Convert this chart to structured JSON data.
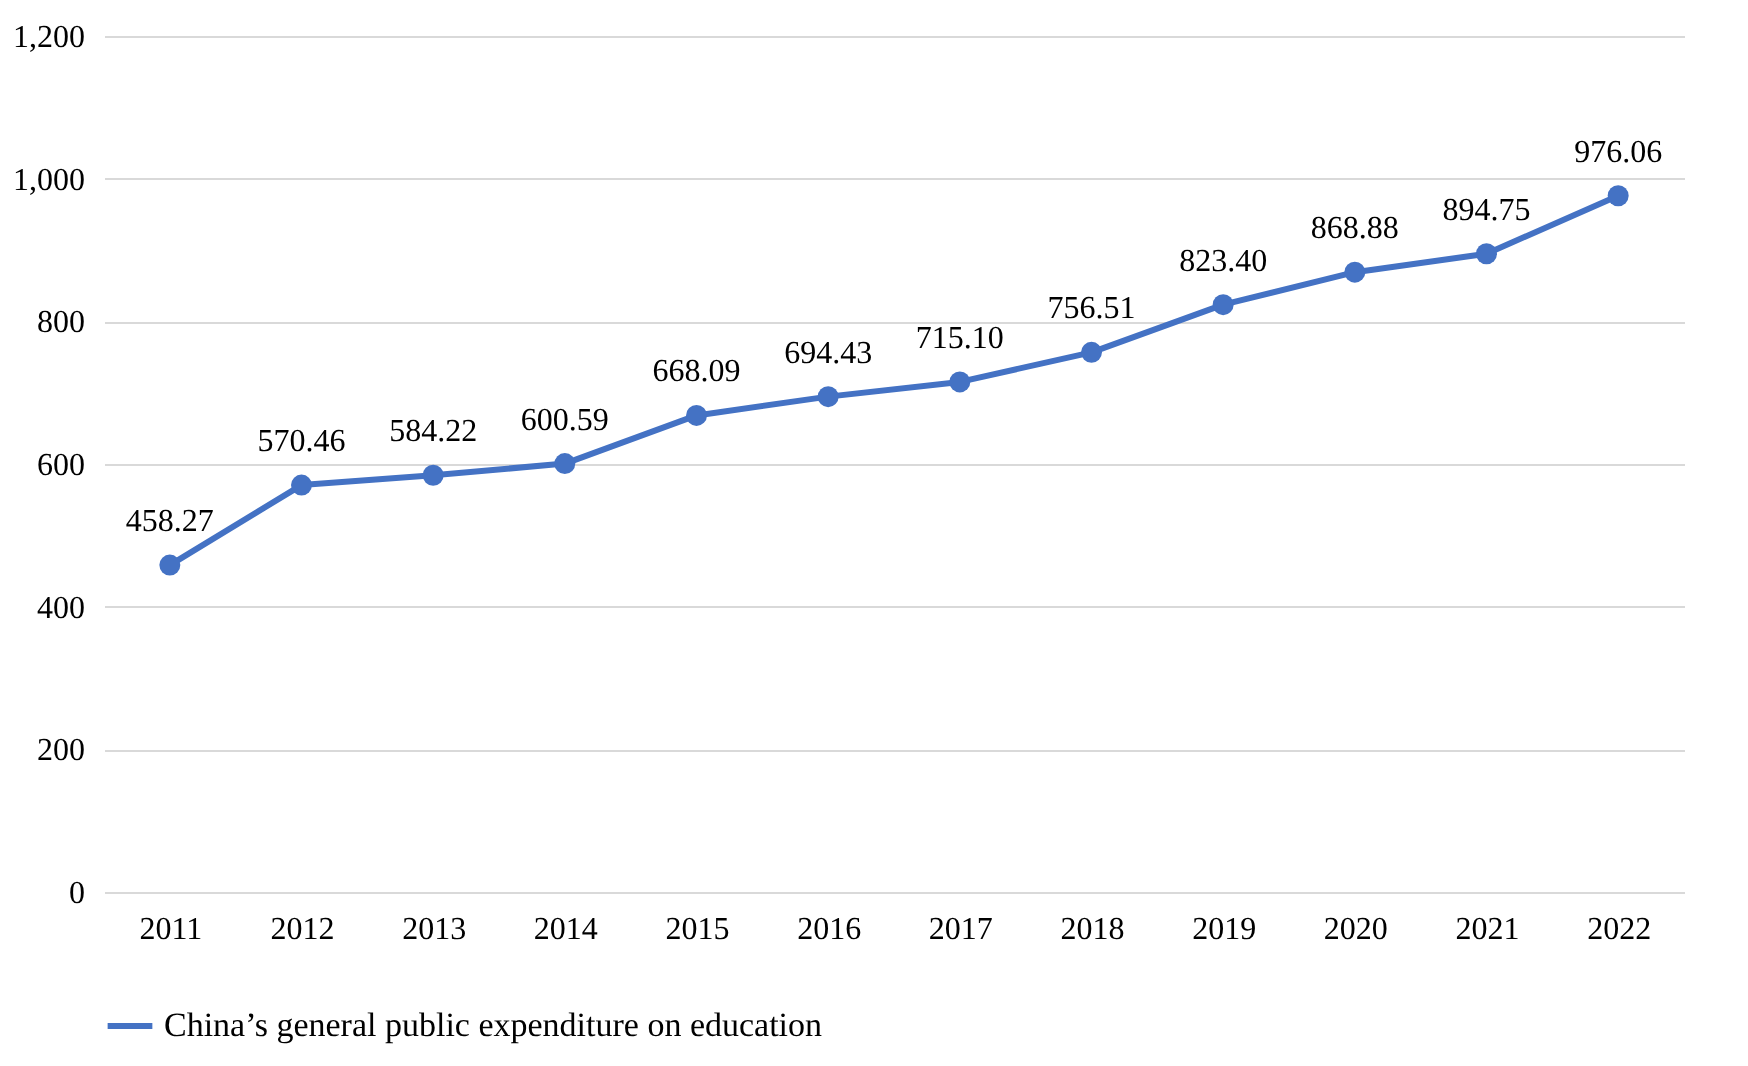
{
  "chart_data": {
    "type": "line",
    "categories": [
      "2011",
      "2012",
      "2013",
      "2014",
      "2015",
      "2016",
      "2017",
      "2018",
      "2019",
      "2020",
      "2021",
      "2022"
    ],
    "series": [
      {
        "name": "China’s general public expenditure on education",
        "color": "#4472c4",
        "values": [
          458.27,
          570.46,
          584.22,
          600.59,
          668.09,
          694.43,
          715.1,
          756.51,
          823.4,
          868.88,
          894.75,
          976.06
        ],
        "value_labels": [
          "458.27",
          "570.46",
          "584.22",
          "600.59",
          "668.09",
          "694.43",
          "715.10",
          "756.51",
          "823.40",
          "868.88",
          "894.75",
          "976.06"
        ]
      }
    ],
    "ylim": [
      0,
      1200
    ],
    "yticks": [
      0,
      200,
      400,
      600,
      800,
      {
        "value": 1000,
        "label": "1,000"
      },
      {
        "value": 1200,
        "label": "1,200"
      }
    ],
    "grid": "y",
    "legend": "bottom",
    "marker": "circle",
    "line_style": "solid"
  }
}
